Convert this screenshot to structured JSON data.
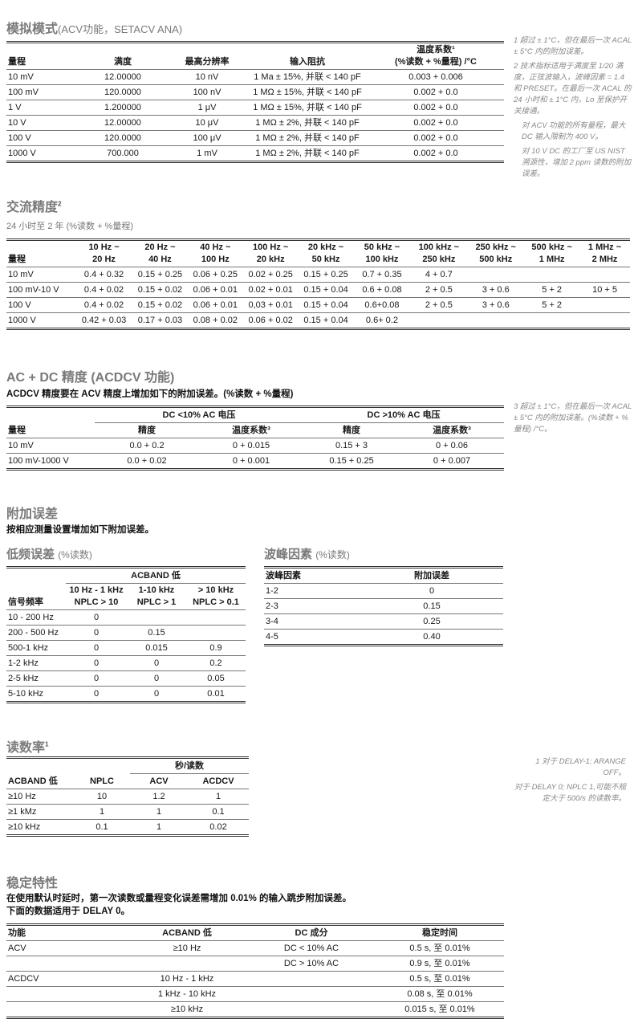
{
  "analog": {
    "title": "模拟模式",
    "title_sub": "(ACV功能，SETACV ANA)",
    "table": {
      "head": [
        [
          {
            "t": "量程"
          },
          {
            "t": "满度"
          },
          {
            "t": "最高分辨率"
          },
          {
            "t": "输入阻抗"
          },
          {
            "t": "温度系数¹\n(%读数 + %量程) /°C"
          }
        ]
      ],
      "rows": [
        [
          "10 mV",
          "12.00000",
          "10 nV",
          "1 Ma ± 15%, 并联 < 140 pF",
          "0.003 + 0.006"
        ],
        [
          "100 mV",
          "120.0000",
          "100 nV",
          "1 MΩ ± 15%, 并联 < 140 pF",
          "0.002 + 0.0"
        ],
        [
          "1 V",
          "1.200000",
          "1 μV",
          "1 MΩ ± 15%, 并联 < 140 pF",
          "0.002 + 0.0"
        ],
        [
          "10 V",
          "12.00000",
          "10 μV",
          "1 MΩ ± 2%, 并联 < 140 pF",
          "0.002 + 0.0"
        ],
        [
          "100 V",
          "120.0000",
          "100 μV",
          "1 MΩ ± 2%, 并联 < 140 pF",
          "0.002 + 0.0"
        ],
        [
          "1000 V",
          "700.000",
          "1 mV",
          "1 MΩ ± 2%, 并联 < 140 pF",
          "0.002 + 0.0"
        ]
      ]
    },
    "notes": [
      "1  超过 ± 1°C，但在最后一次 ACAL ± 5°C 内的附加误差。",
      "2  技术指标适用于满度至 1/20 满度，正弦波输入，波峰因素 = 1.4 和 PRESET。在最后一次 ACAL 的 24 小时和 ± 1°C 内，Lo 至保护开关接通。",
      "对 ACV 功能的所有量程，最大 DC 输入限制为 400 V。",
      "对 10 V DC 的工厂至 US NIST 溯源性，增加 2 ppm 读数的附加误差。"
    ]
  },
  "ac_accuracy": {
    "title": "交流精度",
    "title_sup": "2",
    "subtitle": "24 小时至 2 年 (%读数 + %量程)",
    "table": {
      "head": [
        [
          {
            "t": "量程"
          },
          {
            "t": "10 Hz ~\n20 Hz"
          },
          {
            "t": "20 Hz ~\n40 Hz"
          },
          {
            "t": "40 Hz ~\n100 Hz"
          },
          {
            "t": "100 Hz ~\n20 kHz"
          },
          {
            "t": "20 kHz ~\n50 kHz"
          },
          {
            "t": "50 kHz ~\n100 kHz"
          },
          {
            "t": "100 kHz ~\n250 kHz"
          },
          {
            "t": "250 kHz ~\n500 kHz"
          },
          {
            "t": "500 kHz ~\n1 MHz"
          },
          {
            "t": "1 MHz ~\n2 MHz"
          }
        ]
      ],
      "rows": [
        [
          "10 mV",
          "0.4 + 0.32",
          "0.15 + 0.25",
          "0.06 + 0.25",
          "0.02 + 0.25",
          "0.15 + 0.25",
          "0.7 + 0.35",
          "4 + 0.7",
          "",
          "",
          ""
        ],
        [
          "100 mV-10 V",
          "0.4 + 0.02",
          "0.15 + 0.02",
          "0.06 + 0.01",
          "0.02 + 0.01",
          "0.15 + 0.04",
          "0.6 + 0.08",
          "2 + 0.5",
          "3 + 0.6",
          "5 + 2",
          "10 + 5"
        ],
        [
          "100 V",
          "0.4 + 0.02",
          "0.15 + 0.02",
          "0.06 + 0.01",
          "0,03 + 0.01",
          "0.15 + 0.04",
          "0.6+0.08",
          "2 + 0.5",
          "3 + 0.6",
          "5 + 2",
          ""
        ],
        [
          "1000 V",
          "0.42 + 0.03",
          "0.17 + 0.03",
          "0.08 + 0.02",
          "0.06 + 0.02",
          "0.15 + 0.04",
          "0.6+ 0.2",
          "",
          "",
          "",
          ""
        ]
      ]
    }
  },
  "acdc": {
    "title": "AC + DC 精度 (ACDCV 功能)",
    "subtitle": "ACDCV 精度要在 ACV 精度上增加如下的附加误差。(%读数 + %量程)",
    "table": {
      "head": [
        [
          {
            "t": ""
          },
          {
            "t": "DC <10% AC 电压",
            "c": 2,
            "grp": true
          },
          {
            "t": "DC >10% AC 电压",
            "c": 2,
            "grp": true
          }
        ],
        [
          {
            "t": "量程"
          },
          {
            "t": "精度"
          },
          {
            "t": "温度系数³"
          },
          {
            "t": "精度"
          },
          {
            "t": "温度系数³"
          }
        ]
      ],
      "rows": [
        [
          "10 mV",
          "0.0 + 0.2",
          "0 + 0.015",
          "0.15 + 3",
          "0 + 0.06"
        ],
        [
          "100 mV-1000 V",
          "0.0 + 0.02",
          "0 + 0.001",
          "0.15 + 0.25",
          "0 + 0.007"
        ]
      ]
    },
    "notes": [
      "3  超过 ± 1°C，但在最后一次 ACAL ± 5°C 内的附加误差。(%读数 + %量程) /°C。"
    ]
  },
  "additional": {
    "title": "附加误差",
    "subtitle": "按相应测量设置增加如下附加误差。",
    "low_freq": {
      "title": "低频误差",
      "title_sub": "(%读数)",
      "table": {
        "head": [
          [
            {
              "t": ""
            },
            {
              "t": "ACBAND 低",
              "c": 3,
              "grp": true
            }
          ],
          [
            {
              "t": "信号频率"
            },
            {
              "t": "10 Hz - 1 kHz\nNPLC > 10"
            },
            {
              "t": "1-10 kHz\nNPLC > 1"
            },
            {
              "t": "> 10 kHz\nNPLC > 0.1"
            }
          ]
        ],
        "rows": [
          [
            "10 - 200 Hz",
            "0",
            "",
            ""
          ],
          [
            "200 - 500 Hz",
            "0",
            "0.15",
            ""
          ],
          [
            "500-1 kHz",
            "0",
            "0.015",
            "0.9"
          ],
          [
            "1-2 kHz",
            "0",
            "0",
            "0.2"
          ],
          [
            "2-5 kHz",
            "0",
            "0",
            "0.05"
          ],
          [
            "5-10 kHz",
            "0",
            "0",
            "0.01"
          ]
        ]
      }
    },
    "crest": {
      "title": "波峰因素",
      "title_sub": "(%读数)",
      "table": {
        "head": [
          [
            {
              "t": "波峰因素"
            },
            {
              "t": "附加误差"
            }
          ]
        ],
        "rows": [
          [
            "1-2",
            "0"
          ],
          [
            "2-3",
            "0.15"
          ],
          [
            "3-4",
            "0.25"
          ],
          [
            "4-5",
            "0.40"
          ]
        ]
      }
    }
  },
  "reading_rate": {
    "title": "读数率",
    "title_sup": "1",
    "table": {
      "head": [
        [
          {
            "t": ""
          },
          {
            "t": ""
          },
          {
            "t": "秒/读数",
            "c": 2,
            "grp": true
          }
        ],
        [
          {
            "t": "ACBAND 低"
          },
          {
            "t": "NPLC"
          },
          {
            "t": "ACV"
          },
          {
            "t": "ACDCV"
          }
        ]
      ],
      "rows": [
        [
          "≥10 Hz",
          "10",
          "1.2",
          "1"
        ],
        [
          "≥1 kMz",
          "1",
          "1",
          "0.1"
        ],
        [
          "≥10 kHz",
          "0.1",
          "1",
          "0.02"
        ]
      ]
    },
    "notes": [
      "1  对于 DELAY-1; ARANGE OFF。",
      "对于 DELAY 0; NPLC 1,可能不规定大于 500/s 的读数率。"
    ]
  },
  "settling": {
    "title": "稳定特性",
    "lines": [
      "在使用默认时延时，第一次读数或量程变化误差需增加 0.01% 的输入跳步附加误差。",
      "下面的数据适用于 DELAY 0。"
    ],
    "table": {
      "head": [
        [
          {
            "t": "功能"
          },
          {
            "t": "ACBAND 低"
          },
          {
            "t": "DC 成分"
          },
          {
            "t": "稳定时间"
          }
        ]
      ],
      "rows": [
        [
          "ACV",
          "≥10 Hz",
          "DC < 10% AC",
          "0.5 s, 至 0.01%"
        ],
        [
          "",
          "",
          "DC > 10% AC",
          "0.9 s, 至 0.01%"
        ],
        [
          "ACDCV",
          "10 Hz - 1 kHz",
          "",
          "0.5 s, 至 0.01%"
        ],
        [
          "",
          "1 kHz - 10 kHz",
          "",
          "0.08 s, 至 0.01%"
        ],
        [
          "",
          "≥10 kHz",
          "",
          "0.015 s, 至 0.01%"
        ]
      ]
    }
  }
}
